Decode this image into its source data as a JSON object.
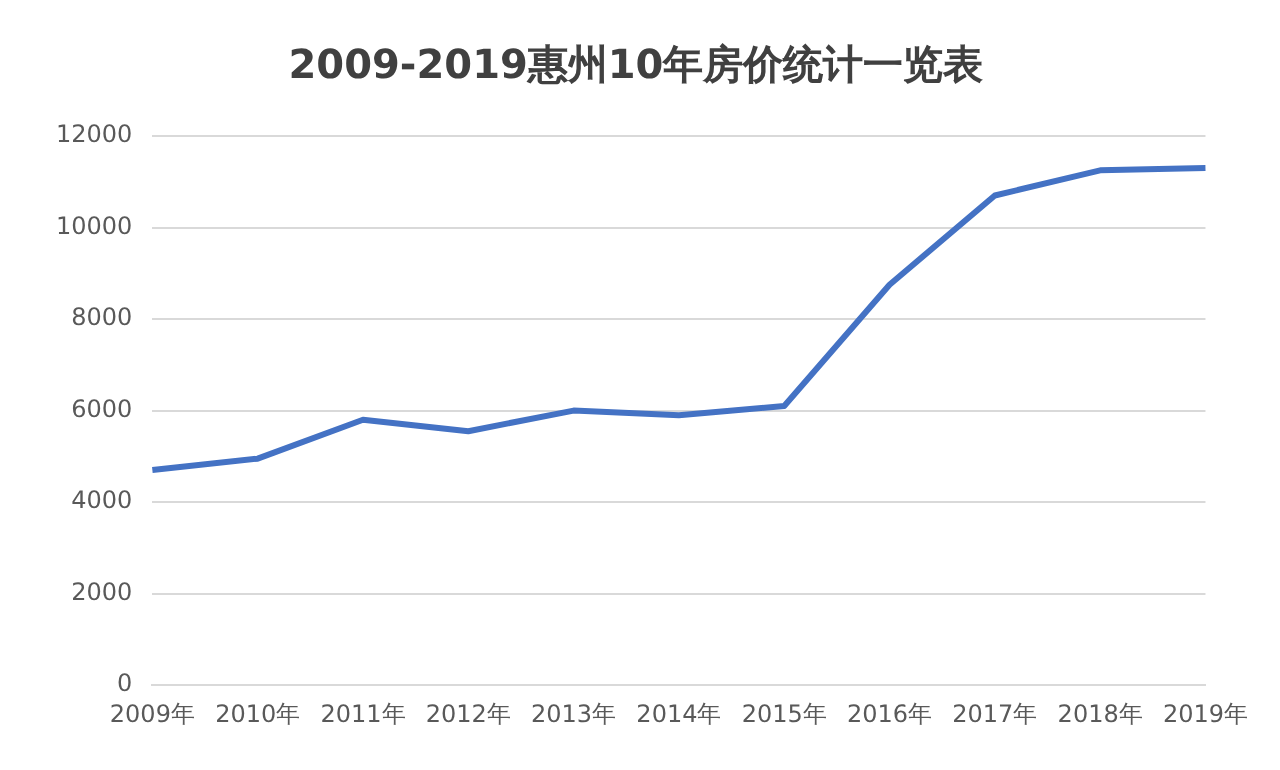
{
  "chart_data": {
    "type": "line",
    "title": "2009-2019惠州10年房价统计一览表",
    "categories": [
      "2009年",
      "2010年",
      "2011年",
      "2012年",
      "2013年",
      "2014年",
      "2015年",
      "2016年",
      "2017年",
      "2018年",
      "2019年"
    ],
    "series": [
      {
        "color": "#4472c4",
        "values": [
          4700,
          4950,
          5800,
          5550,
          6000,
          5900,
          6100,
          8750,
          10700,
          11250,
          11300
        ]
      }
    ],
    "ylim": [
      0,
      12000
    ],
    "yticks": [
      0,
      2000,
      4000,
      6000,
      8000,
      10000,
      12000
    ],
    "grid": "y",
    "legend": false,
    "marker": "none",
    "line_style": "solid"
  }
}
